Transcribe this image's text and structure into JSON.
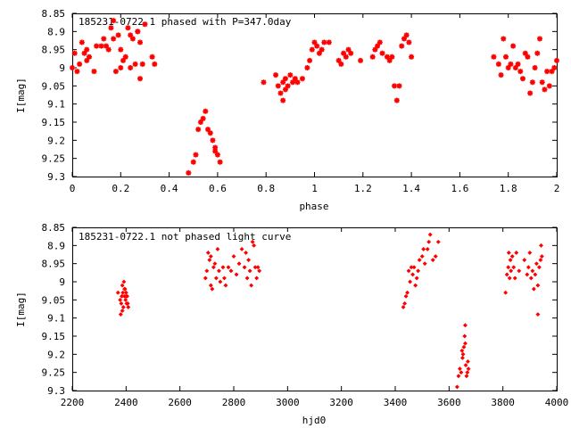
{
  "chart_data": [
    {
      "type": "scatter",
      "title": "185231-0722.1 phased with P=347.0day",
      "xlabel": "phase",
      "ylabel": "I[mag]",
      "xlim": [
        0,
        2
      ],
      "ylim": [
        9.3,
        8.85
      ],
      "y_inverted": true,
      "xticks": [
        "0",
        "0.2",
        "0.4",
        "0.6",
        "0.8",
        "1",
        "1.2",
        "1.4",
        "1.6",
        "1.8",
        "2"
      ],
      "yticks": [
        "8.85",
        "8.9",
        "8.95",
        "9",
        "9.05",
        "9.1",
        "9.15",
        "9.2",
        "9.25",
        "9.3"
      ],
      "grid": false,
      "marker": "star",
      "color": "#ff0000",
      "series": [
        {
          "x": [
            0.0,
            0.01,
            0.02,
            0.03,
            0.04,
            0.05,
            0.06,
            0.07,
            0.09,
            0.1,
            0.12,
            0.13,
            0.14,
            0.15,
            0.16,
            0.17,
            0.18,
            0.19,
            0.2,
            0.21,
            0.22,
            0.23,
            0.24,
            0.25,
            0.26,
            0.27,
            0.28,
            0.29,
            0.3,
            0.33,
            0.34,
            0.17,
            0.24,
            0.27,
            0.28,
            0.06,
            0.2,
            0.48,
            0.5,
            0.51,
            0.52,
            0.53,
            0.54,
            0.55,
            0.56,
            0.57,
            0.58,
            0.59,
            0.6,
            0.61,
            0.59,
            0.79,
            0.84,
            0.85,
            0.86,
            0.87,
            0.87,
            0.88,
            0.88,
            0.89,
            0.9,
            0.91,
            0.92,
            0.93,
            0.95,
            0.97,
            0.98,
            0.99,
            1.0,
            1.01,
            1.02,
            1.03,
            1.04,
            1.06,
            1.1,
            1.11,
            1.12,
            1.13,
            1.14,
            1.15,
            1.19,
            1.24,
            1.25,
            1.26,
            1.27,
            1.28,
            1.3,
            1.31,
            1.32,
            1.33,
            1.34,
            1.35,
            1.36,
            1.37,
            1.38,
            1.39,
            1.4,
            1.74,
            1.76,
            1.77,
            1.78,
            1.79,
            1.8,
            1.81,
            1.82,
            1.83,
            1.84,
            1.85,
            1.86,
            1.87,
            1.88,
            1.89,
            1.9,
            1.91,
            1.92,
            1.93,
            1.94,
            1.95,
            1.96,
            1.97,
            1.98,
            1.99,
            2.0
          ],
          "y": [
            9.0,
            8.96,
            9.01,
            8.99,
            8.93,
            8.96,
            8.98,
            8.97,
            9.01,
            8.94,
            8.94,
            8.92,
            8.94,
            8.95,
            8.89,
            8.87,
            9.01,
            8.91,
            9.0,
            8.98,
            8.97,
            8.89,
            9.0,
            8.92,
            8.99,
            8.9,
            9.03,
            8.99,
            8.88,
            8.97,
            8.99,
            8.92,
            8.91,
            8.9,
            8.93,
            8.95,
            8.95,
            9.29,
            9.26,
            9.24,
            9.17,
            9.15,
            9.14,
            9.12,
            9.17,
            9.18,
            9.2,
            9.23,
            9.24,
            9.26,
            9.22,
            9.04,
            9.02,
            9.05,
            9.07,
            9.09,
            9.04,
            9.03,
            9.06,
            9.05,
            9.02,
            9.04,
            9.03,
            9.04,
            9.03,
            9.0,
            8.98,
            8.95,
            8.93,
            8.94,
            8.96,
            8.95,
            8.93,
            8.93,
            8.98,
            8.99,
            8.96,
            8.97,
            8.95,
            8.96,
            8.98,
            8.97,
            8.95,
            8.94,
            8.93,
            8.96,
            8.97,
            8.98,
            8.97,
            9.05,
            9.09,
            9.05,
            8.94,
            8.92,
            8.91,
            8.93,
            8.97,
            8.97,
            8.99,
            9.02,
            8.92,
            8.97,
            9.0,
            8.99,
            8.94,
            9.0,
            8.99,
            9.01,
            9.03,
            8.96,
            8.97,
            9.07,
            9.04,
            9.0,
            8.96,
            8.92,
            9.04,
            9.06,
            9.01,
            9.05,
            9.01,
            9.0,
            8.98
          ]
        }
      ]
    },
    {
      "type": "scatter",
      "title": "185231-0722.1 not phased light curve",
      "xlabel": "hjd0",
      "ylabel": "I[mag]",
      "xlim": [
        2200,
        4000
      ],
      "ylim": [
        9.3,
        8.85
      ],
      "y_inverted": true,
      "xticks": [
        "2200",
        "2400",
        "2600",
        "2800",
        "3000",
        "3200",
        "3400",
        "3600",
        "3800",
        "4000"
      ],
      "yticks": [
        "8.85",
        "8.9",
        "8.95",
        "9",
        "9.05",
        "9.1",
        "9.15",
        "9.2",
        "9.25",
        "9.3"
      ],
      "grid": false,
      "marker": "diamond",
      "color": "#ff0000",
      "series": [
        {
          "x": [
            2370,
            2378,
            2380,
            2382,
            2384,
            2386,
            2388,
            2390,
            2392,
            2394,
            2396,
            2398,
            2400,
            2402,
            2404,
            2406,
            2408,
            2386,
            2394,
            2400,
            2695,
            2700,
            2705,
            2710,
            2715,
            2720,
            2725,
            2730,
            2735,
            2740,
            2745,
            2750,
            2760,
            2765,
            2770,
            2780,
            2790,
            2800,
            2810,
            2820,
            2830,
            2840,
            2850,
            2855,
            2860,
            2865,
            2870,
            2875,
            2880,
            2885,
            2890,
            2895,
            2715,
            2845,
            3430,
            3435,
            3440,
            3445,
            3450,
            3455,
            3460,
            3465,
            3470,
            3475,
            3480,
            3485,
            3490,
            3500,
            3505,
            3510,
            3520,
            3525,
            3530,
            3540,
            3550,
            3560,
            3630,
            3635,
            3640,
            3645,
            3650,
            3652,
            3655,
            3658,
            3660,
            3662,
            3665,
            3668,
            3670,
            3672,
            3648,
            3660,
            3810,
            3815,
            3820,
            3822,
            3825,
            3828,
            3830,
            3835,
            3840,
            3845,
            3850,
            3860,
            3880,
            3890,
            3895,
            3900,
            3905,
            3910,
            3915,
            3920,
            3925,
            3930,
            3935,
            3940,
            3942,
            3945,
            3930
          ],
          "y": [
            9.03,
            9.05,
            9.09,
            9.06,
            9.04,
            9.01,
            9.03,
            9.07,
            9.0,
            9.04,
            9.02,
            9.05,
            9.03,
            9.06,
            9.04,
            9.06,
            9.07,
            9.08,
            9.02,
            9.04,
            8.99,
            8.97,
            8.92,
            8.94,
            9.01,
            9.02,
            8.96,
            8.95,
            8.99,
            8.91,
            8.97,
            9.0,
            8.96,
            8.99,
            9.01,
            8.96,
            8.97,
            8.93,
            8.98,
            8.95,
            8.91,
            8.96,
            8.99,
            8.94,
            8.97,
            9.01,
            8.89,
            8.9,
            8.96,
            8.99,
            8.96,
            8.97,
            8.93,
            8.92,
            9.07,
            9.06,
            9.04,
            9.03,
            8.97,
            9.0,
            8.96,
            8.98,
            8.96,
            9.01,
            8.99,
            8.97,
            8.94,
            8.93,
            8.91,
            8.95,
            8.91,
            8.89,
            8.87,
            8.94,
            8.93,
            8.89,
            9.29,
            9.26,
            9.24,
            9.25,
            9.21,
            9.2,
            9.18,
            9.15,
            9.12,
            9.23,
            9.26,
            9.25,
            9.22,
            9.24,
            9.19,
            9.17,
            9.03,
            8.98,
            8.96,
            8.92,
            8.99,
            8.94,
            8.97,
            8.93,
            8.96,
            8.99,
            8.92,
            8.97,
            8.94,
            8.98,
            8.96,
            8.92,
            8.99,
            8.97,
            9.02,
            8.98,
            8.95,
            9.01,
            8.96,
            8.94,
            8.9,
            8.93,
            9.09
          ]
        }
      ]
    }
  ]
}
